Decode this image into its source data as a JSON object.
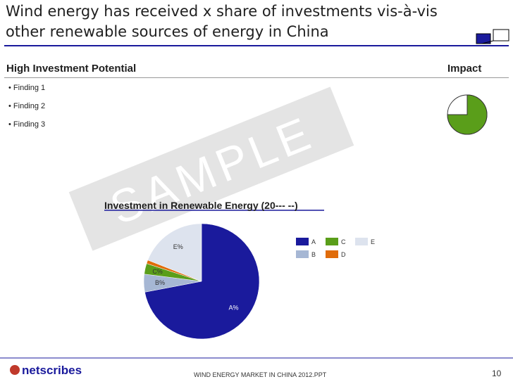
{
  "header": {
    "title": "Wind energy has received x share of investments vis-à-vis other renewable sources of energy in China"
  },
  "section": {
    "heading": "High Investment Potential",
    "impact_label": "Impact",
    "impact_rating": 75,
    "impact_color": "#5a9e1a",
    "findings": [
      "• Finding 1",
      "• Finding 2",
      "• Finding 3"
    ]
  },
  "watermark": "SAMPLE",
  "chart_data": {
    "type": "pie",
    "title": "Investment in Renewable Energy (20--- --)",
    "categories": [
      "A",
      "B",
      "C",
      "D",
      "E"
    ],
    "values": [
      72,
      5,
      3,
      1,
      19
    ],
    "value_labels": [
      "A%",
      "B%",
      "C%",
      "D%",
      "E%"
    ],
    "colors": [
      "#1a1a9c",
      "#a6b7d4",
      "#5a9e1a",
      "#e06c0a",
      "#dde3ee"
    ]
  },
  "footer": {
    "logo": "netscribes",
    "document": "WIND ENERGY  MARKET IN CHINA 2012.PPT",
    "page": "10"
  }
}
